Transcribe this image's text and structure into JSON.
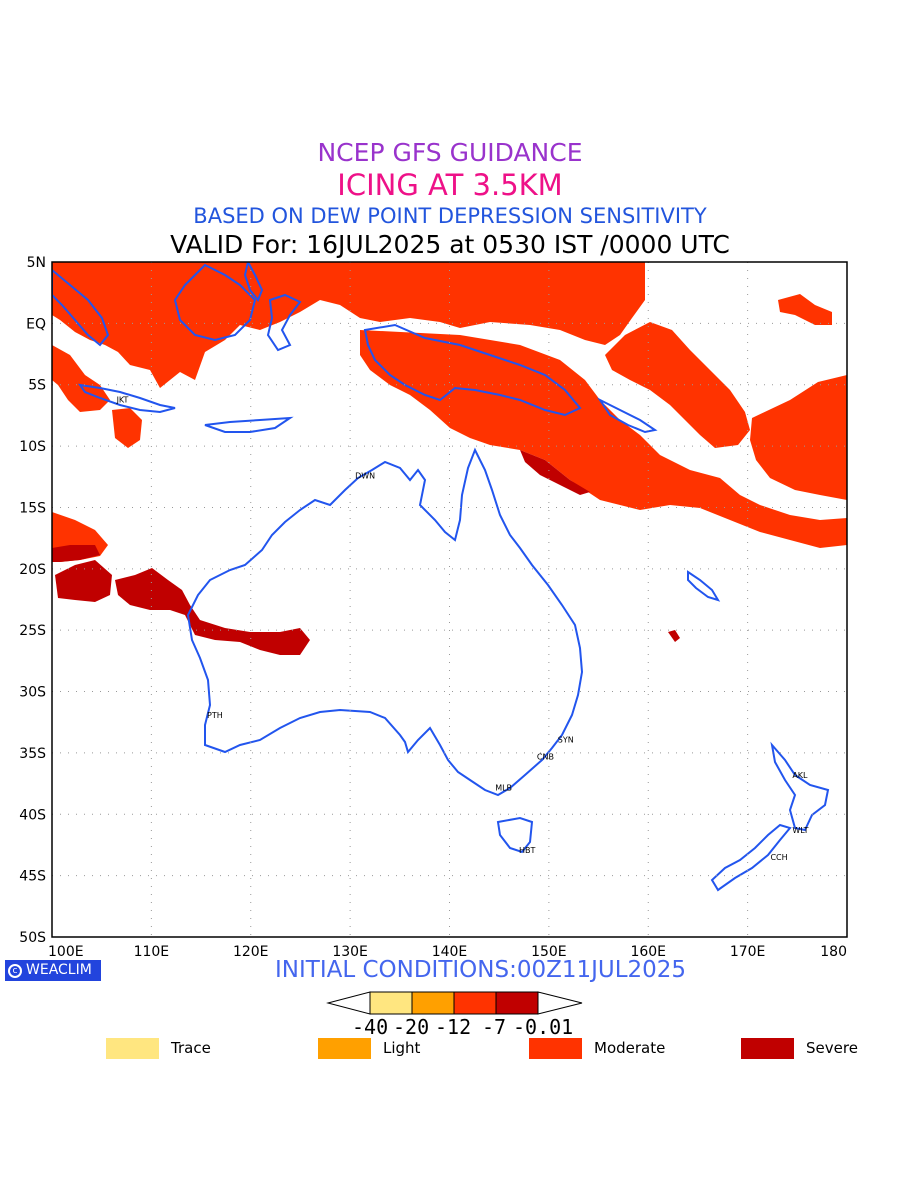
{
  "header": {
    "title1": "NCEP GFS GUIDANCE",
    "title2": "ICING AT 3.5KM",
    "title3": "BASED ON DEW POINT DEPRESSION SENSITIVITY",
    "title4": "VALID For: 16JUL2025 at 0530 IST /0000 UTC"
  },
  "colors": {
    "title1": "#9933cc",
    "title2": "#ee1188",
    "title3": "#2255dd",
    "coast": "#2255ee",
    "trace": "#ffe680",
    "light": "#ffa000",
    "moderate": "#ff3300",
    "severe": "#c00000",
    "grid": "#999999"
  },
  "map": {
    "lon_range": [
      100,
      180
    ],
    "lat_range": [
      -50,
      5
    ],
    "x_ticks": [
      "100E",
      "110E",
      "120E",
      "130E",
      "140E",
      "150E",
      "160E",
      "170E",
      "180"
    ],
    "y_ticks": [
      "5N",
      "EQ",
      "5S",
      "10S",
      "15S",
      "20S",
      "25S",
      "30S",
      "35S",
      "40S",
      "45S",
      "50S"
    ],
    "cities": [
      {
        "label": "JKT",
        "lon": 106.8,
        "lat": -6.2
      },
      {
        "label": "DWN",
        "lon": 130.8,
        "lat": -12.4
      },
      {
        "label": "PTH",
        "lon": 115.9,
        "lat": -31.9
      },
      {
        "label": "SYN",
        "lon": 151.2,
        "lat": -33.9
      },
      {
        "label": "CNB",
        "lon": 149.1,
        "lat": -35.3
      },
      {
        "label": "MLB",
        "lon": 144.9,
        "lat": -37.8
      },
      {
        "label": "HBT",
        "lon": 147.3,
        "lat": -42.9
      },
      {
        "label": "AKL",
        "lon": 174.8,
        "lat": -36.8
      },
      {
        "label": "WLT",
        "lon": 174.8,
        "lat": -41.3
      },
      {
        "label": "CCH",
        "lon": 172.6,
        "lat": -43.5
      }
    ]
  },
  "footer": {
    "logo": "WEACLIM",
    "initial": "INITIAL CONDITIONS:00Z11JUL2025"
  },
  "colorbar": {
    "labels": [
      "-40",
      "-20",
      "-12",
      "-7",
      "-0.01"
    ]
  },
  "legend": [
    {
      "label": "Trace",
      "color": "#ffe680"
    },
    {
      "label": "Light",
      "color": "#ffa000"
    },
    {
      "label": "Moderate",
      "color": "#ff3300"
    },
    {
      "label": "Severe",
      "color": "#c00000"
    }
  ]
}
